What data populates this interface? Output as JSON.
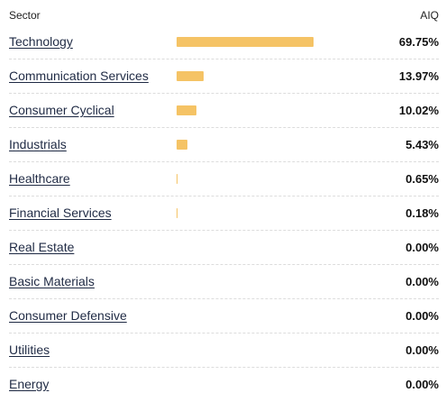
{
  "header": {
    "sector_label": "Sector",
    "fund_label": "AIQ"
  },
  "colors": {
    "bar": "#f5c365"
  },
  "sectors": [
    {
      "label": "Technology",
      "value": "69.75%",
      "pct": 69.75
    },
    {
      "label": "Communication Services",
      "value": "13.97%",
      "pct": 13.97
    },
    {
      "label": "Consumer Cyclical",
      "value": "10.02%",
      "pct": 10.02
    },
    {
      "label": "Industrials",
      "value": "5.43%",
      "pct": 5.43
    },
    {
      "label": "Healthcare",
      "value": "0.65%",
      "pct": 0.65
    },
    {
      "label": "Financial Services",
      "value": "0.18%",
      "pct": 0.18
    },
    {
      "label": "Real Estate",
      "value": "0.00%",
      "pct": 0
    },
    {
      "label": "Basic Materials",
      "value": "0.00%",
      "pct": 0
    },
    {
      "label": "Consumer Defensive",
      "value": "0.00%",
      "pct": 0
    },
    {
      "label": "Utilities",
      "value": "0.00%",
      "pct": 0
    },
    {
      "label": "Energy",
      "value": "0.00%",
      "pct": 0
    }
  ]
}
